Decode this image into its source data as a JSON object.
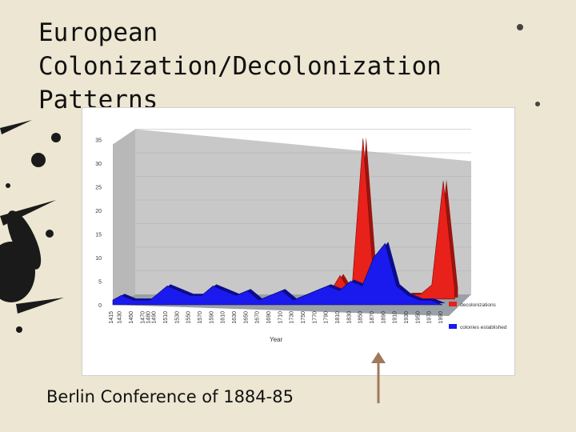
{
  "slide": {
    "title_lines": [
      "European",
      "Colonization/Decolonization",
      "Patterns"
    ],
    "caption": "Berlin Conference of 1884-85"
  },
  "colors": {
    "background": "#ece6d2",
    "ink": "#1a1a1a",
    "decolonizations": "#e8211a",
    "colonies_established": "#1a1aee",
    "wall": "#c8c8c8",
    "floor": "#9aa0a8",
    "arrow": "#a0785a"
  },
  "chart_data": {
    "type": "area",
    "style": "3d",
    "title": "",
    "xlabel": "Year",
    "ylabel": "",
    "ylim": [
      0,
      35
    ],
    "yticks": [
      "0",
      "5",
      "10",
      "15",
      "20",
      "25",
      "30",
      "35"
    ],
    "grid": true,
    "legend": "right",
    "x": [
      1415,
      1430,
      1450,
      1470,
      1480,
      1490,
      1510,
      1530,
      1550,
      1570,
      1590,
      1610,
      1630,
      1650,
      1670,
      1690,
      1710,
      1730,
      1750,
      1770,
      1790,
      1810,
      1830,
      1850,
      1870,
      1890,
      1910,
      1930,
      1950,
      1970,
      1990
    ],
    "xtick_labels": [
      "1415",
      "1430",
      "1450",
      "1470",
      "1480",
      "1490",
      "1510",
      "1530",
      "1550",
      "1570",
      "1590",
      "1610",
      "1630",
      "1650",
      "1670",
      "1690",
      "1710",
      "1730",
      "1750",
      "1770",
      "1790",
      "1810",
      "1830",
      "1850",
      "1870",
      "1890",
      "1910",
      "1930",
      "1950",
      "1970",
      "1990"
    ],
    "series": [
      {
        "name": "decolonizations",
        "values": [
          0,
          0,
          0,
          0,
          0,
          0,
          0,
          0,
          0,
          0,
          0,
          0,
          0,
          0,
          0,
          0,
          0,
          0,
          0,
          1,
          5,
          1,
          34,
          2,
          1,
          0,
          1,
          1,
          3,
          25,
          2
        ]
      },
      {
        "name": "colonies established",
        "values": [
          1,
          2,
          1,
          1,
          1,
          2,
          4,
          3,
          2,
          2,
          4,
          3,
          2,
          3,
          1,
          2,
          3,
          1,
          2,
          3,
          4,
          3,
          5,
          4,
          10,
          13,
          4,
          2,
          1,
          1,
          0
        ]
      }
    ]
  },
  "annotation": {
    "label": "Berlin Conference of 1884-85",
    "x": 1885
  }
}
